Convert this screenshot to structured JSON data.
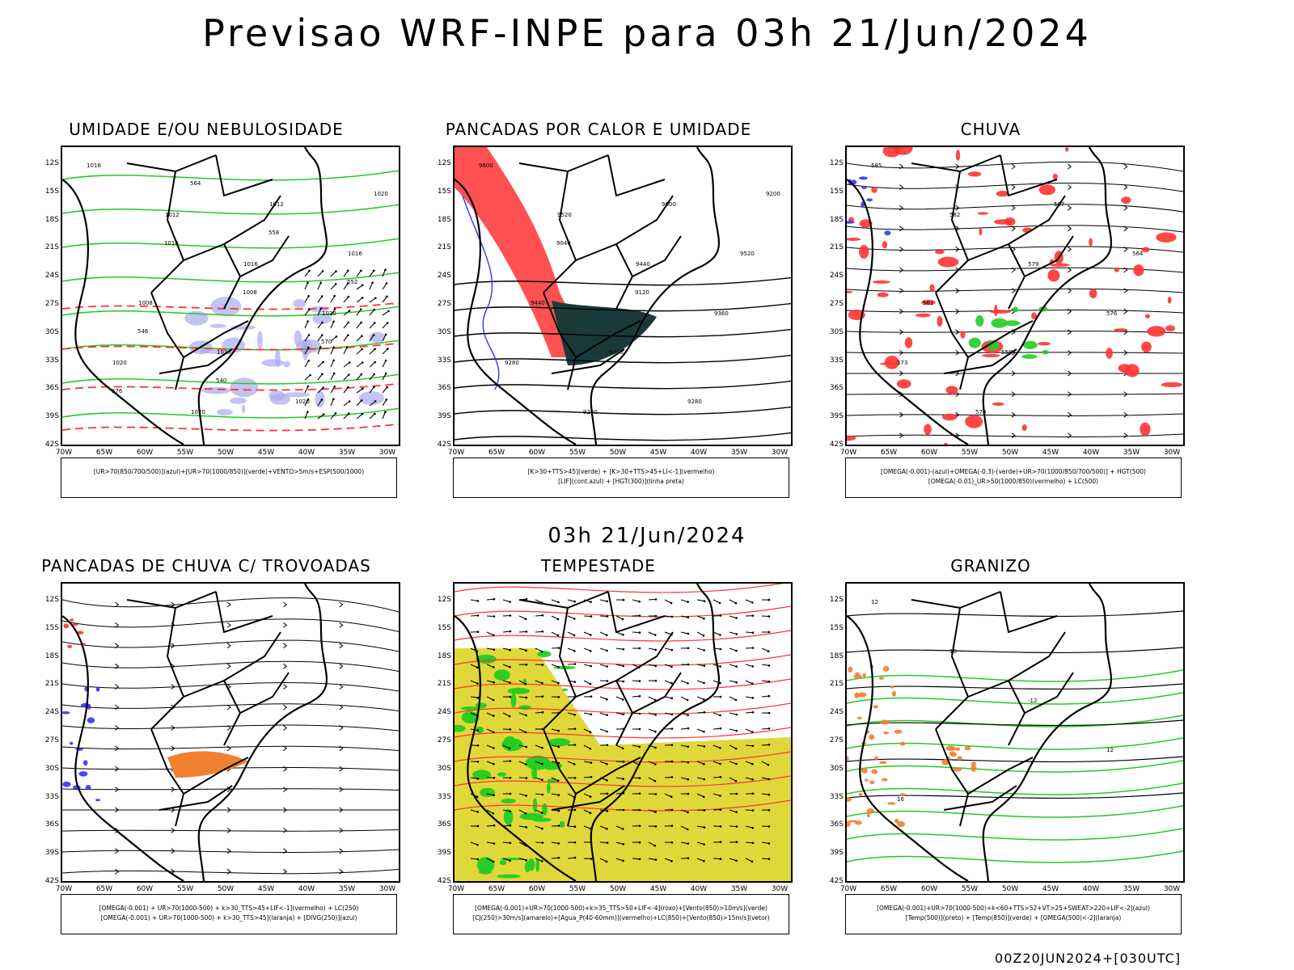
{
  "title": "Previsao WRF-INPE  para 03h 21/Jun/2024",
  "subtitle": "03h 21/Jun/2024",
  "footer": "00Z20JUN2024+[030UTC]",
  "axes": {
    "lat_labels": [
      "12S",
      "15S",
      "18S",
      "21S",
      "24S",
      "27S",
      "30S",
      "33S",
      "36S",
      "39S",
      "42S"
    ],
    "lon_labels": [
      "70W",
      "65W",
      "60W",
      "55W",
      "50W",
      "45W",
      "40W",
      "35W",
      "30W"
    ]
  },
  "colors": {
    "blue": "#3333ff",
    "red": "#ff3333",
    "green": "#22cc22",
    "lavender": "#aaaaf0",
    "darkteal": "#1a3a3a",
    "yellow": "#e0d83a",
    "orange": "#f08030"
  },
  "panels": [
    {
      "title": "UMIDADE E/OU NEBULOSIDADE",
      "legend_lines": [
        "[UR>70(850/700/500)](azul)+[UR>70(1000/850)](verde)+VENTO>5m/s+ESP(500/1000)"
      ],
      "contour_labels": [
        "1016",
        "1012",
        "1016",
        "1020",
        "1020",
        "1020",
        "1012",
        "1016",
        "1008",
        "1016",
        "1020",
        "1020",
        "1016",
        "1008",
        "570",
        "576",
        "564",
        "558",
        "552",
        "546",
        "540"
      ]
    },
    {
      "title": "PANCADAS POR CALOR E UMIDADE",
      "legend_lines": [
        "[K>30+TTS>45](verde) + [K>30+TTS>45+LI<-1](vermelho)",
        "[LIF](cont.azul) + [HGT(300)](linha preta)"
      ],
      "contour_labels": [
        "9600",
        "9520",
        "9440",
        "9360",
        "9280",
        "9200",
        "9600",
        "9520",
        "9440",
        "9360",
        "9280",
        "9200",
        "9040",
        "9120"
      ]
    },
    {
      "title": "CHUVA",
      "legend_lines": [
        "[OMEGA(-0.001)-(azul)+OMEGA(-0.3)-(verde)+UR>70(1000/850/700/500)] + HGT(500)",
        "[OMEGA(-0.01)_UR>50(1000/850)(vermelho) + LC(500)"
      ],
      "contour_labels": [
        "585",
        "582",
        "579",
        "576",
        "573",
        "570",
        "567",
        "564",
        "561",
        "558"
      ]
    },
    {
      "title": "PANCADAS DE CHUVA C/ TROVOADAS",
      "legend_lines": [
        "[OMEGA(-0.001) + UR>70(1000-500) + k>30_TTS>45+LIF<-1](vermelho) + LC(250)",
        "[OMEGA(-0.001) + UR>70(1000-500) + k>30_TTS>45](laranja) + [DIVG(250)](azul)"
      ],
      "contour_labels": []
    },
    {
      "title": "TEMPESTADE",
      "legend_lines": [
        "[OMEGA(-0.001)+UR>70(1000-500)+k>35_TTS>50+LIF<-4](roxo)+[Vento(850)>10m/s](verde)",
        "[CJ(250)>30m/s](amarelo)+[Agua_P(40-60mm)](vermelho)+LC(850)+[Vento(850)>15m/s](vetor)"
      ],
      "contour_labels": []
    },
    {
      "title": "GRANIZO",
      "legend_lines": [
        "[OMEGA(-0.001)+UR>70(1000-500)+k<60+TTS>52+VT>25+SWEAT>220+LIF<-2](azul)",
        "[Temp(500)](preto) + [Temp(850)](verde) + [OMEGA(500)<-2](laranja)"
      ],
      "contour_labels": [
        "12",
        "16",
        "-12",
        "12",
        "16"
      ]
    }
  ]
}
